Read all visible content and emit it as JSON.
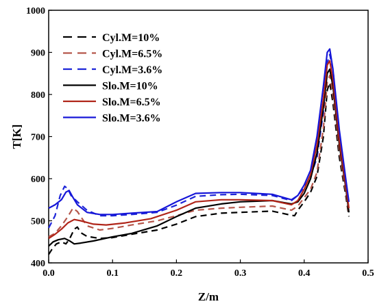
{
  "chart_data": {
    "type": "line",
    "title": "",
    "xlabel": "Z/m",
    "ylabel": "T[K]",
    "xlim": [
      0.0,
      0.5
    ],
    "ylim": [
      400,
      1000
    ],
    "xticks": [
      0.0,
      0.1,
      0.2,
      0.3,
      0.4,
      0.5
    ],
    "xtick_labels": [
      "0.0",
      "0.1",
      "0.2",
      "0.3",
      "0.4",
      "0.5"
    ],
    "yticks": [
      400,
      500,
      600,
      700,
      800,
      900,
      1000
    ],
    "ytick_labels": [
      "400",
      "500",
      "600",
      "700",
      "800",
      "900",
      "1000"
    ],
    "grid": false,
    "legend_position": "top-left",
    "series": [
      {
        "name": "Cyl.M=10%",
        "color": "#000000",
        "style": "dashed",
        "points": [
          [
            0.0,
            420
          ],
          [
            0.005,
            432
          ],
          [
            0.012,
            445
          ],
          [
            0.02,
            450
          ],
          [
            0.027,
            445
          ],
          [
            0.033,
            458
          ],
          [
            0.04,
            480
          ],
          [
            0.045,
            485
          ],
          [
            0.05,
            472
          ],
          [
            0.06,
            463
          ],
          [
            0.08,
            458
          ],
          [
            0.1,
            460
          ],
          [
            0.13,
            468
          ],
          [
            0.17,
            478
          ],
          [
            0.2,
            492
          ],
          [
            0.23,
            510
          ],
          [
            0.27,
            518
          ],
          [
            0.3,
            520
          ],
          [
            0.35,
            523
          ],
          [
            0.38,
            513
          ],
          [
            0.385,
            512
          ],
          [
            0.39,
            525
          ],
          [
            0.4,
            545
          ],
          [
            0.41,
            568
          ],
          [
            0.42,
            605
          ],
          [
            0.43,
            700
          ],
          [
            0.436,
            810
          ],
          [
            0.44,
            828
          ],
          [
            0.445,
            780
          ],
          [
            0.455,
            650
          ],
          [
            0.465,
            560
          ],
          [
            0.47,
            510
          ]
        ]
      },
      {
        "name": "Cyl.M=6.5%",
        "color": "#b5564a",
        "style": "dashed",
        "points": [
          [
            0.0,
            462
          ],
          [
            0.01,
            470
          ],
          [
            0.02,
            488
          ],
          [
            0.03,
            510
          ],
          [
            0.038,
            530
          ],
          [
            0.045,
            522
          ],
          [
            0.06,
            488
          ],
          [
            0.08,
            478
          ],
          [
            0.1,
            482
          ],
          [
            0.13,
            490
          ],
          [
            0.17,
            500
          ],
          [
            0.2,
            512
          ],
          [
            0.23,
            525
          ],
          [
            0.27,
            530
          ],
          [
            0.3,
            532
          ],
          [
            0.35,
            535
          ],
          [
            0.38,
            525
          ],
          [
            0.39,
            535
          ],
          [
            0.4,
            555
          ],
          [
            0.41,
            575
          ],
          [
            0.42,
            615
          ],
          [
            0.43,
            720
          ],
          [
            0.436,
            830
          ],
          [
            0.44,
            845
          ],
          [
            0.445,
            800
          ],
          [
            0.455,
            665
          ],
          [
            0.465,
            568
          ],
          [
            0.47,
            515
          ]
        ]
      },
      {
        "name": "Cyl.M=3.6%",
        "color": "#1c24d8",
        "style": "dashed",
        "points": [
          [
            0.0,
            483
          ],
          [
            0.01,
            512
          ],
          [
            0.018,
            560
          ],
          [
            0.025,
            582
          ],
          [
            0.03,
            576
          ],
          [
            0.035,
            560
          ],
          [
            0.045,
            545
          ],
          [
            0.06,
            525
          ],
          [
            0.08,
            512
          ],
          [
            0.1,
            512
          ],
          [
            0.13,
            515
          ],
          [
            0.17,
            520
          ],
          [
            0.2,
            537
          ],
          [
            0.23,
            558
          ],
          [
            0.27,
            562
          ],
          [
            0.3,
            563
          ],
          [
            0.35,
            560
          ],
          [
            0.38,
            548
          ],
          [
            0.39,
            560
          ],
          [
            0.4,
            580
          ],
          [
            0.41,
            605
          ],
          [
            0.42,
            650
          ],
          [
            0.43,
            760
          ],
          [
            0.436,
            875
          ],
          [
            0.44,
            895
          ],
          [
            0.445,
            860
          ],
          [
            0.455,
            700
          ],
          [
            0.465,
            590
          ],
          [
            0.47,
            540
          ]
        ]
      },
      {
        "name": "Slo.M=10%",
        "color": "#000000",
        "style": "solid",
        "points": [
          [
            0.0,
            440
          ],
          [
            0.007,
            450
          ],
          [
            0.015,
            455
          ],
          [
            0.025,
            458
          ],
          [
            0.033,
            452
          ],
          [
            0.04,
            445
          ],
          [
            0.05,
            447
          ],
          [
            0.07,
            452
          ],
          [
            0.1,
            462
          ],
          [
            0.13,
            470
          ],
          [
            0.17,
            488
          ],
          [
            0.2,
            510
          ],
          [
            0.23,
            530
          ],
          [
            0.27,
            540
          ],
          [
            0.3,
            545
          ],
          [
            0.35,
            548
          ],
          [
            0.38,
            540
          ],
          [
            0.39,
            545
          ],
          [
            0.4,
            565
          ],
          [
            0.41,
            600
          ],
          [
            0.42,
            660
          ],
          [
            0.43,
            770
          ],
          [
            0.436,
            850
          ],
          [
            0.44,
            860
          ],
          [
            0.445,
            820
          ],
          [
            0.455,
            680
          ],
          [
            0.465,
            580
          ],
          [
            0.47,
            520
          ]
        ]
      },
      {
        "name": "Slo.M=6.5%",
        "color": "#b02418",
        "style": "solid",
        "points": [
          [
            0.0,
            458
          ],
          [
            0.01,
            468
          ],
          [
            0.02,
            480
          ],
          [
            0.03,
            495
          ],
          [
            0.04,
            503
          ],
          [
            0.05,
            500
          ],
          [
            0.07,
            492
          ],
          [
            0.09,
            490
          ],
          [
            0.12,
            495
          ],
          [
            0.16,
            505
          ],
          [
            0.2,
            525
          ],
          [
            0.23,
            545
          ],
          [
            0.27,
            550
          ],
          [
            0.3,
            550
          ],
          [
            0.35,
            548
          ],
          [
            0.38,
            538
          ],
          [
            0.39,
            548
          ],
          [
            0.4,
            575
          ],
          [
            0.41,
            610
          ],
          [
            0.42,
            680
          ],
          [
            0.43,
            790
          ],
          [
            0.436,
            870
          ],
          [
            0.44,
            880
          ],
          [
            0.445,
            835
          ],
          [
            0.455,
            690
          ],
          [
            0.465,
            585
          ],
          [
            0.47,
            530
          ]
        ]
      },
      {
        "name": "Slo.M=3.6%",
        "color": "#1616d8",
        "style": "solid",
        "points": [
          [
            0.0,
            530
          ],
          [
            0.01,
            538
          ],
          [
            0.02,
            550
          ],
          [
            0.027,
            568
          ],
          [
            0.032,
            572
          ],
          [
            0.037,
            558
          ],
          [
            0.045,
            538
          ],
          [
            0.06,
            520
          ],
          [
            0.08,
            515
          ],
          [
            0.1,
            515
          ],
          [
            0.13,
            518
          ],
          [
            0.17,
            522
          ],
          [
            0.2,
            545
          ],
          [
            0.23,
            565
          ],
          [
            0.27,
            567
          ],
          [
            0.3,
            567
          ],
          [
            0.35,
            563
          ],
          [
            0.38,
            550
          ],
          [
            0.39,
            560
          ],
          [
            0.4,
            585
          ],
          [
            0.41,
            620
          ],
          [
            0.42,
            700
          ],
          [
            0.43,
            820
          ],
          [
            0.436,
            900
          ],
          [
            0.44,
            908
          ],
          [
            0.445,
            860
          ],
          [
            0.455,
            715
          ],
          [
            0.465,
            600
          ],
          [
            0.47,
            545
          ]
        ]
      }
    ]
  }
}
